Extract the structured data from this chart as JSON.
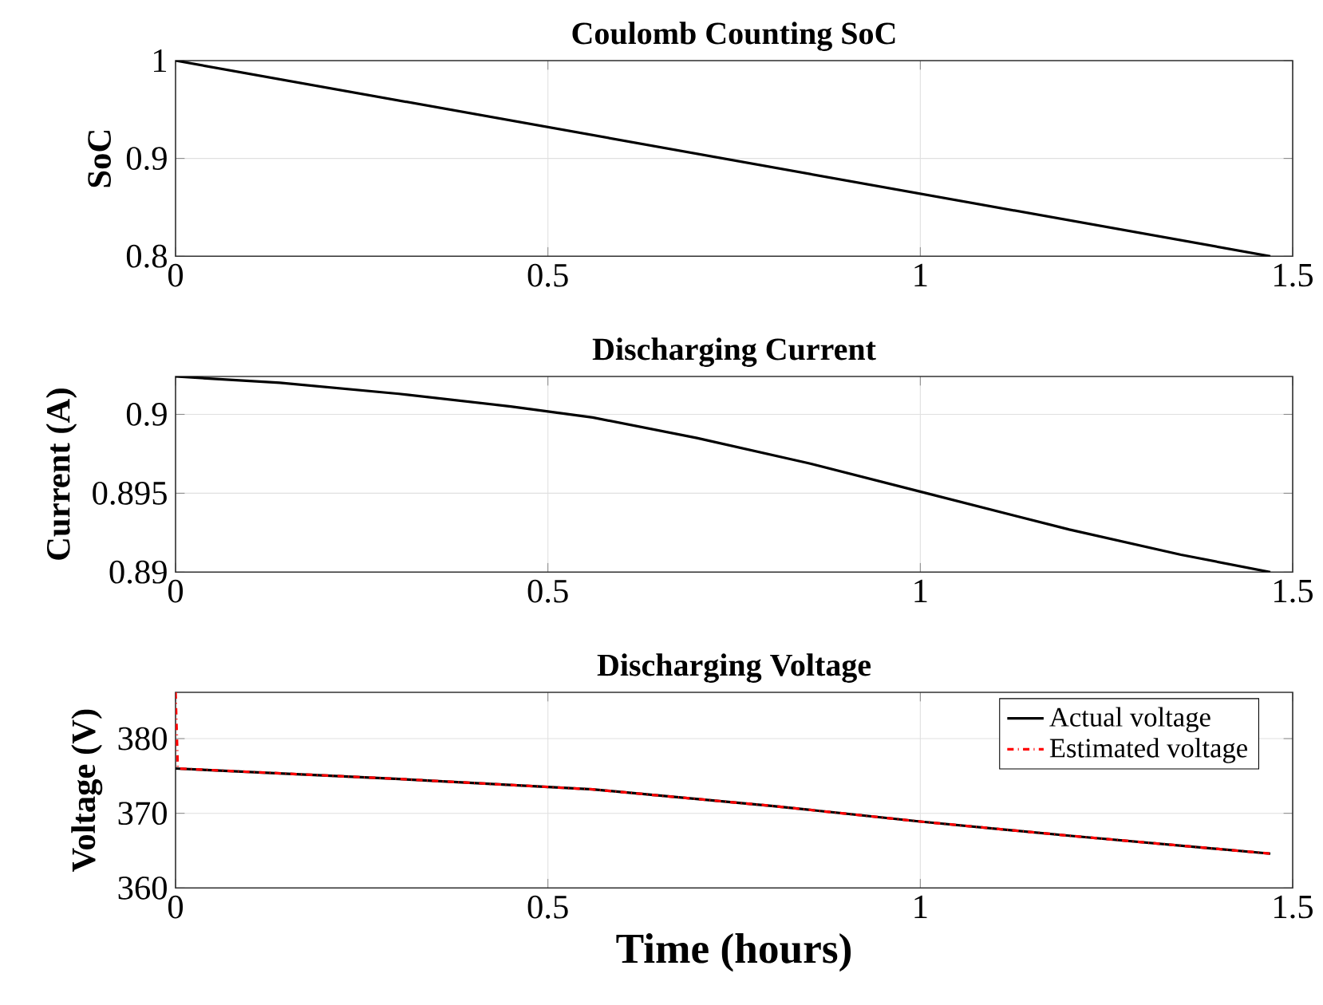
{
  "chart_data": [
    {
      "type": "line",
      "title": "Coulomb Counting SoC",
      "ylabel": "SoC",
      "xlim": [
        0,
        1.5
      ],
      "ylim": [
        0.8,
        1
      ],
      "xticks": [
        0,
        0.5,
        1,
        1.5
      ],
      "yticks": [
        0.8,
        0.9,
        1
      ],
      "grid": true,
      "series": [
        {
          "color": "#000000",
          "x": [
            0,
            1.47
          ],
          "values": [
            1,
            0.8
          ]
        }
      ]
    },
    {
      "type": "line",
      "title": "Discharging Current",
      "ylabel": "Current (A)",
      "xlim": [
        0,
        1.5
      ],
      "ylim": [
        0.89,
        0.9024
      ],
      "xticks": [
        0,
        0.5,
        1,
        1.5
      ],
      "yticks": [
        0.89,
        0.895,
        0.9
      ],
      "grid": true,
      "series": [
        {
          "color": "#000000",
          "x": [
            0,
            0.14,
            0.3,
            0.45,
            0.56,
            0.7,
            0.85,
            1.0,
            1.2,
            1.35,
            1.47
          ],
          "values": [
            0.9024,
            0.902,
            0.9013,
            0.9005,
            0.8998,
            0.8985,
            0.8969,
            0.8951,
            0.8927,
            0.8911,
            0.89
          ]
        }
      ]
    },
    {
      "type": "line",
      "title": "Discharging Voltage",
      "xlabel": "Time (hours)",
      "ylabel": "Voltage (V)",
      "xlim": [
        0,
        1.5
      ],
      "ylim": [
        360,
        386.2
      ],
      "xticks": [
        0,
        0.5,
        1,
        1.5
      ],
      "yticks": [
        360,
        370,
        380
      ],
      "grid": true,
      "legend": "top right",
      "series": [
        {
          "name": "Actual voltage",
          "color": "#000000",
          "line_style": "solid",
          "x": [
            0,
            0.3,
            0.56,
            0.8,
            1.0,
            1.2,
            1.47
          ],
          "values": [
            376,
            374.6,
            373.2,
            371,
            368.9,
            367,
            364.6
          ]
        },
        {
          "name": "Estimated voltage",
          "color": "#ff0000",
          "line_style": "dashed",
          "x": [
            0,
            0.003,
            0.3,
            0.56,
            0.8,
            1.0,
            1.2,
            1.47
          ],
          "values": [
            386.2,
            376,
            374.6,
            373.2,
            371,
            368.9,
            367,
            364.6
          ]
        }
      ]
    }
  ]
}
